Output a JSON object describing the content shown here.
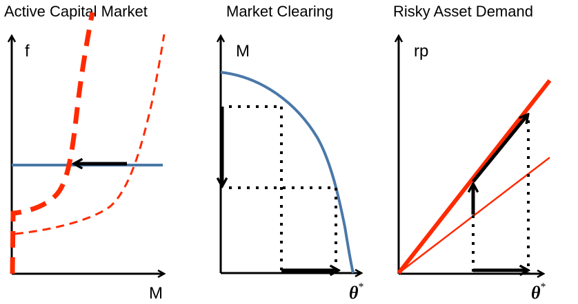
{
  "panels": [
    {
      "title": "Active Capital Market",
      "y_label": "f",
      "x_label": "M"
    },
    {
      "title": "Market Clearing",
      "y_label": "M",
      "x_label": "θ",
      "x_label_sup": "*"
    },
    {
      "title": "Risky Asset Demand",
      "y_label": "rp",
      "x_label": "θ",
      "x_label_sup": "*"
    }
  ],
  "colors": {
    "axis": "#000000",
    "red": "#ff2a00",
    "blue": "#4a78a8",
    "arrow": "#000000",
    "dotted": "#000000"
  }
}
